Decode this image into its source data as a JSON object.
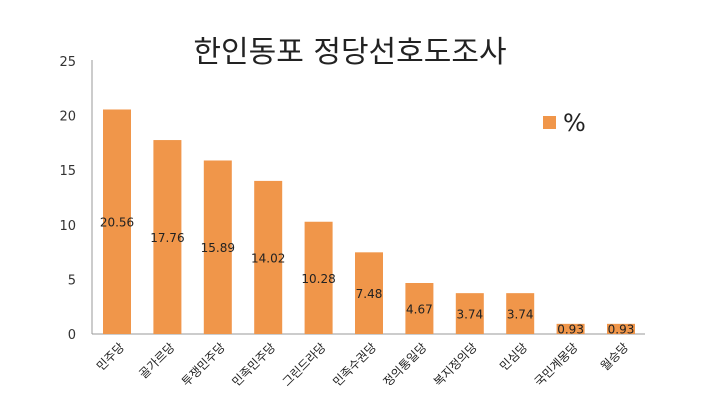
{
  "chart_data": {
    "type": "bar",
    "title": "한인동포 정당선호도조사",
    "categories": [
      "민주당",
      "골가르당",
      "투쟁민주당",
      "민족민주당",
      "그린드라당",
      "민족수권당",
      "정의통일당",
      "복지정의당",
      "민심당",
      "국민계몽당",
      "월승당"
    ],
    "series": [
      {
        "name": "%",
        "values": [
          20.56,
          17.76,
          15.89,
          14.02,
          10.28,
          7.48,
          4.67,
          3.74,
          3.74,
          0.93,
          0.93
        ],
        "color": "#f0964a"
      }
    ],
    "ylim": [
      0,
      25
    ],
    "yticks": [
      "0",
      "5",
      "10",
      "15",
      "20",
      "25"
    ],
    "grid": false,
    "legend_position": "top-right"
  }
}
